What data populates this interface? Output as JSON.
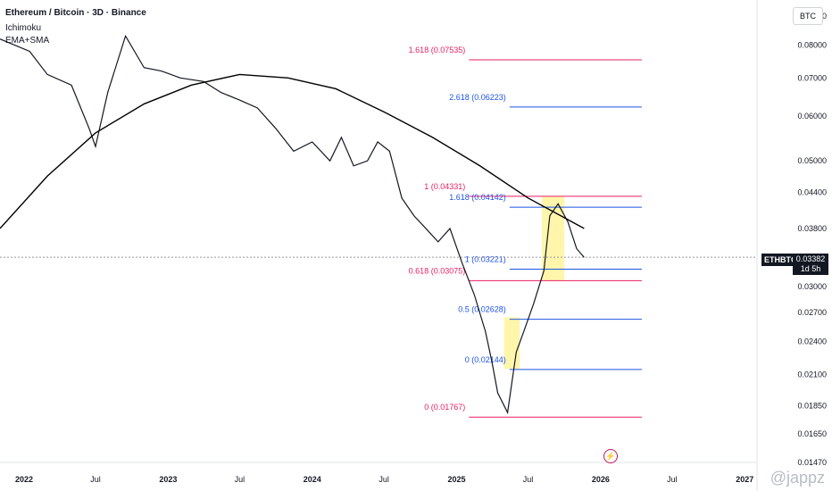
{
  "header": {
    "title": "Ethereum / Bitcoin · 3D · Binance",
    "indicator_1": "Ichimoku",
    "indicator_2": "EMA+SMA"
  },
  "unit_label": "BTC",
  "price_tag": {
    "symbol": "ETHBTC",
    "price": "0.03382",
    "countdown": "1d 5h"
  },
  "watermark": "@jappz",
  "chart_data": {
    "type": "line",
    "y_scale": "log",
    "ylim": [
      0.0147,
      0.09
    ],
    "y_ticks": [
      "0.09000",
      "0.08000",
      "0.07000",
      "0.06000",
      "0.05000",
      "0.04400",
      "0.03800",
      "0.03000",
      "0.02700",
      "0.02400",
      "0.02100",
      "0.01850",
      "0.01650",
      "0.01470"
    ],
    "x_ticks": [
      "2022",
      "Jul",
      "2023",
      "Jul",
      "2024",
      "Jul",
      "2025",
      "Jul",
      "2026",
      "Jul",
      "2027"
    ],
    "x_tick_dates": [
      "2022-01-01",
      "2022-07-01",
      "2023-01-01",
      "2023-07-01",
      "2024-01-01",
      "2024-07-01",
      "2025-01-01",
      "2025-07-01",
      "2026-01-01",
      "2026-07-01",
      "2027-01-01"
    ],
    "xlim": [
      "2021-11-01",
      "2027-02-01"
    ],
    "current_price": 0.03382,
    "series": [
      {
        "color": "#131722",
        "x": [
          "2021-11-01",
          "2022-01-15",
          "2022-03-01",
          "2022-05-01",
          "2022-06-15",
          "2022-07-01",
          "2022-08-01",
          "2022-09-15",
          "2022-11-01",
          "2022-12-15",
          "2023-02-01",
          "2023-04-01",
          "2023-05-15",
          "2023-07-01",
          "2023-08-15",
          "2023-10-01",
          "2023-11-15",
          "2024-01-01",
          "2024-02-15",
          "2024-03-15",
          "2024-04-15",
          "2024-05-20",
          "2024-06-15",
          "2024-07-15",
          "2024-08-15",
          "2024-09-15",
          "2024-10-15",
          "2024-11-15",
          "2024-12-15",
          "2025-01-15",
          "2025-02-15",
          "2025-03-15",
          "2025-04-01",
          "2025-04-15",
          "2025-05-10",
          "2025-06-01",
          "2025-06-20",
          "2025-07-15",
          "2025-08-10",
          "2025-08-25",
          "2025-09-15",
          "2025-10-10",
          "2025-11-01",
          "2025-11-20"
        ],
        "values": [
          0.082,
          0.078,
          0.071,
          0.068,
          0.057,
          0.053,
          0.066,
          0.083,
          0.073,
          0.072,
          0.07,
          0.069,
          0.066,
          0.064,
          0.062,
          0.057,
          0.052,
          0.054,
          0.05,
          0.055,
          0.049,
          0.05,
          0.054,
          0.052,
          0.043,
          0.04,
          0.038,
          0.036,
          0.038,
          0.033,
          0.029,
          0.025,
          0.022,
          0.0195,
          0.018,
          0.023,
          0.025,
          0.028,
          0.032,
          0.04,
          0.042,
          0.039,
          0.035,
          0.0338
        ]
      },
      {
        "color": "#000000",
        "x": [
          "2021-11-01",
          "2022-03-01",
          "2022-07-01",
          "2022-11-01",
          "2023-03-01",
          "2023-07-01",
          "2023-11-01",
          "2024-03-01",
          "2024-07-01",
          "2024-11-01",
          "2025-03-01",
          "2025-07-01",
          "2025-11-20"
        ],
        "values": [
          0.038,
          0.047,
          0.056,
          0.063,
          0.068,
          0.071,
          0.07,
          0.067,
          0.061,
          0.055,
          0.049,
          0.043,
          0.038
        ]
      }
    ],
    "fib_levels": [
      {
        "label": "1.618 (0.07535)",
        "value": 0.07535,
        "color": "#e91e63"
      },
      {
        "label": "2.618 (0.06223)",
        "value": 0.06223,
        "color": "#1e53e5"
      },
      {
        "label": "1 (0.04331)",
        "value": 0.04331,
        "color": "#e91e63"
      },
      {
        "label": "1.618 (0.04142)",
        "value": 0.04142,
        "color": "#1e53e5"
      },
      {
        "label": "1 (0.03221)",
        "value": 0.03221,
        "color": "#1e53e5"
      },
      {
        "label": "0.618 (0.03075)",
        "value": 0.03075,
        "color": "#e91e63"
      },
      {
        "label": "0.5 (0.02628)",
        "value": 0.02628,
        "color": "#1e53e5"
      },
      {
        "label": "0 (0.02144)",
        "value": 0.02144,
        "color": "#1e53e5"
      },
      {
        "label": "0 (0.01767)",
        "value": 0.01767,
        "color": "#e91e63"
      }
    ],
    "highlight_boxes": [
      {
        "x0": "2025-05-01",
        "x1": "2025-06-10",
        "y0": 0.0215,
        "y1": 0.0265,
        "color": "#fff59d"
      },
      {
        "x0": "2025-08-05",
        "x1": "2025-10-01",
        "y0": 0.0308,
        "y1": 0.0433,
        "color": "#fff59d"
      }
    ]
  }
}
